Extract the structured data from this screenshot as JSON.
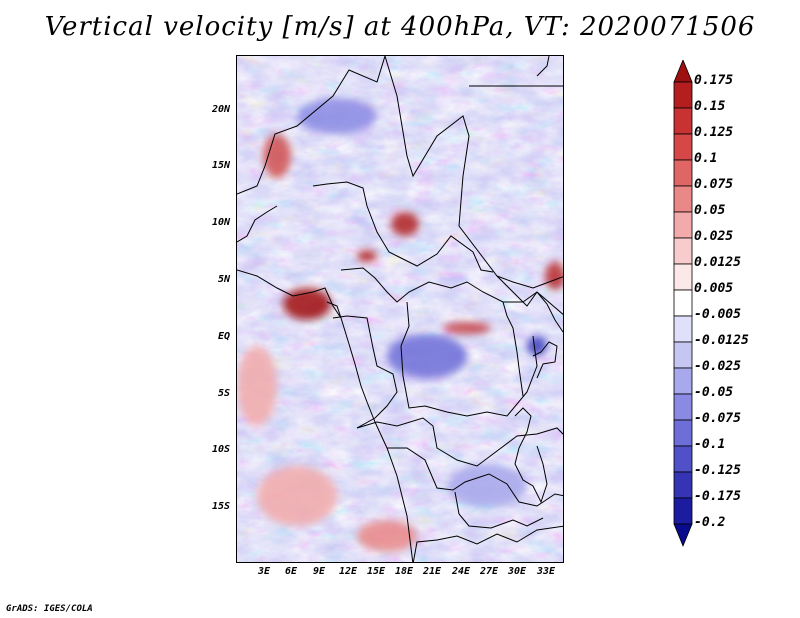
{
  "title": "Vertical velocity [m/s] at 400hPa, VT: 2020071506",
  "credit": "GrADS: IGES/COLA",
  "map": {
    "lat_labels": [
      "20N",
      "15N",
      "10N",
      "5N",
      "EQ",
      "5S",
      "10S",
      "15S"
    ],
    "lon_labels": [
      "3E",
      "6E",
      "9E",
      "12E",
      "15E",
      "18E",
      "21E",
      "24E",
      "27E",
      "30E",
      "33E"
    ]
  },
  "colorbar": {
    "levels": [
      "0.175",
      "0.15",
      "0.125",
      "0.1",
      "0.075",
      "0.05",
      "0.025",
      "0.0125",
      "0.005",
      "-0.005",
      "-0.0125",
      "-0.025",
      "-0.05",
      "-0.075",
      "-0.1",
      "-0.125",
      "-0.175",
      "-0.2"
    ],
    "colors": [
      "#9e1010",
      "#b41e1e",
      "#c83232",
      "#d64848",
      "#e06666",
      "#ea8888",
      "#f2aaaa",
      "#f8cccc",
      "#fce8e8",
      "#ffffff",
      "#e0e0fa",
      "#c6c6f2",
      "#a8a8ec",
      "#8a8ae4",
      "#6e6ed8",
      "#5050c8",
      "#3434b4",
      "#1c1ca0",
      "#0a0a8c"
    ]
  },
  "colors": {
    "positive_strong": "#a01010",
    "negative_strong": "#1c1ca0",
    "border": "#000000"
  }
}
